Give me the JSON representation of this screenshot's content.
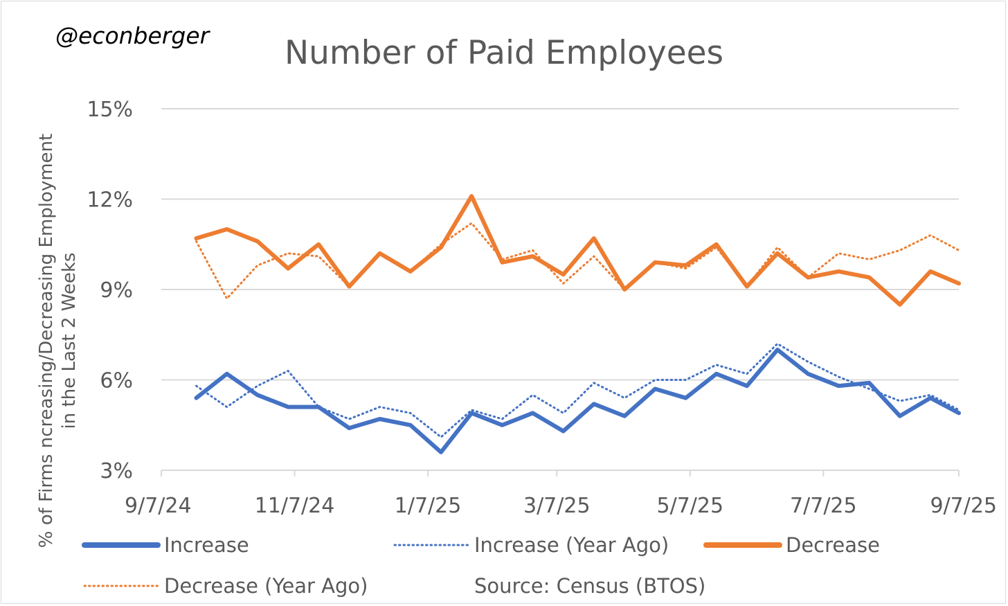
{
  "handle": "@econberger",
  "source": "Source: Census (BTOS)",
  "chart_data": {
    "type": "line",
    "title": "Number of Paid Employees",
    "ylabel_line1": "% of Firms ncreasing/Decreasing Employment",
    "ylabel_line2": "in the Last 2 Weeks",
    "xlabel": "",
    "ylim": [
      3,
      15
    ],
    "yticks": [
      3,
      6,
      9,
      12,
      15
    ],
    "ytick_labels": [
      "3%",
      "6%",
      "9%",
      "12%",
      "15%"
    ],
    "xticks": [
      {
        "label": "9/7/24",
        "day": 0
      },
      {
        "label": "11/7/24",
        "day": 61
      },
      {
        "label": "1/7/25",
        "day": 122
      },
      {
        "label": "3/7/25",
        "day": 181
      },
      {
        "label": "5/7/25",
        "day": 242
      },
      {
        "label": "7/7/25",
        "day": 303
      },
      {
        "label": "9/7/25",
        "day": 365
      }
    ],
    "x_range_days": [
      0,
      365
    ],
    "x_days": [
      16,
      30,
      44,
      58,
      72,
      86,
      100,
      114,
      128,
      142,
      156,
      170,
      184,
      198,
      212,
      226,
      240,
      254,
      268,
      282,
      296,
      310,
      324,
      338,
      352,
      365
    ],
    "series": [
      {
        "name": "Increase",
        "color": "#4472C4",
        "style": "solid",
        "values": [
          5.4,
          6.2,
          5.5,
          5.1,
          5.1,
          4.4,
          4.7,
          4.5,
          3.6,
          4.9,
          4.5,
          4.9,
          4.3,
          5.2,
          4.8,
          5.7,
          5.4,
          6.2,
          5.8,
          7.0,
          6.2,
          5.8,
          5.9,
          4.8,
          5.4,
          4.9
        ]
      },
      {
        "name": "Increase (Year Ago)",
        "color": "#4472C4",
        "style": "dotted",
        "values": [
          5.8,
          5.1,
          5.8,
          6.3,
          5.1,
          4.7,
          5.1,
          4.9,
          4.1,
          5.0,
          4.7,
          5.5,
          4.9,
          5.9,
          5.4,
          6.0,
          6.0,
          6.5,
          6.2,
          7.2,
          6.6,
          6.1,
          5.7,
          5.3,
          5.5,
          5.0
        ]
      },
      {
        "name": "Decrease",
        "color": "#ED7D31",
        "style": "solid",
        "values": [
          10.7,
          11.0,
          10.6,
          9.7,
          10.5,
          9.1,
          10.2,
          9.6,
          10.4,
          12.1,
          9.9,
          10.1,
          9.5,
          10.7,
          9.0,
          9.9,
          9.8,
          10.5,
          9.1,
          10.2,
          9.4,
          9.6,
          9.4,
          8.5,
          9.6,
          9.2
        ]
      },
      {
        "name": "Decrease (Year Ago)",
        "color": "#ED7D31",
        "style": "dotted",
        "values": [
          10.6,
          8.7,
          9.8,
          10.2,
          10.1,
          9.1,
          10.2,
          9.6,
          10.5,
          11.2,
          10.0,
          10.3,
          9.2,
          10.1,
          9.0,
          9.9,
          9.7,
          10.4,
          9.1,
          10.4,
          9.4,
          10.2,
          10.0,
          10.3,
          10.8,
          10.3
        ]
      }
    ]
  }
}
